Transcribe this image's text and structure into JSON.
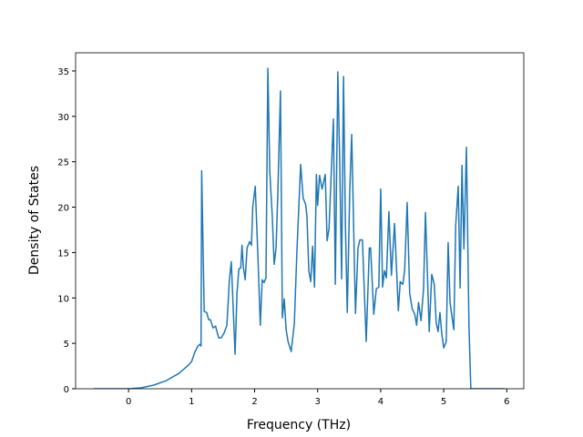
{
  "chart_data": {
    "type": "line",
    "xlabel": "Frequency (THz)",
    "ylabel": "Density of States",
    "xlim": [
      -0.84,
      6.27
    ],
    "ylim": [
      0,
      37
    ],
    "xticks": [
      0,
      1,
      2,
      3,
      4,
      5,
      6
    ],
    "yticks": [
      0,
      5,
      10,
      15,
      20,
      25,
      30,
      35
    ],
    "grid": false,
    "series": [
      {
        "color": "#1f77b4",
        "x": [
          -0.55,
          0,
          0.2,
          0.4,
          0.6,
          0.8,
          0.95,
          1.0,
          1.05,
          1.1,
          1.13,
          1.15,
          1.16,
          1.2,
          1.24,
          1.27,
          1.3,
          1.34,
          1.38,
          1.43,
          1.47,
          1.52,
          1.56,
          1.6,
          1.63,
          1.69,
          1.72,
          1.75,
          1.78,
          1.8,
          1.82,
          1.85,
          1.88,
          1.92,
          1.95,
          1.97,
          2.01,
          2.05,
          2.09,
          2.12,
          2.15,
          2.18,
          2.21,
          2.24,
          2.28,
          2.31,
          2.34,
          2.37,
          2.41,
          2.44,
          2.47,
          2.5,
          2.53,
          2.58,
          2.63,
          2.67,
          2.73,
          2.77,
          2.81,
          2.83,
          2.86,
          2.89,
          2.92,
          2.95,
          2.98,
          3.0,
          3.03,
          3.07,
          3.12,
          3.15,
          3.18,
          3.25,
          3.28,
          3.32,
          3.35,
          3.38,
          3.41,
          3.44,
          3.47,
          3.51,
          3.54,
          3.6,
          3.64,
          3.67,
          3.71,
          3.77,
          3.82,
          3.84,
          3.89,
          3.93,
          3.97,
          4.0,
          4.03,
          4.06,
          4.09,
          4.13,
          4.17,
          4.22,
          4.28,
          4.31,
          4.35,
          4.38,
          4.42,
          4.46,
          4.5,
          4.54,
          4.57,
          4.6,
          4.64,
          4.68,
          4.71,
          4.77,
          4.81,
          4.85,
          4.88,
          4.91,
          4.94,
          4.97,
          5.0,
          5.04,
          5.07,
          5.1,
          5.16,
          5.19,
          5.23,
          5.26,
          5.29,
          5.32,
          5.36,
          5.4,
          5.43,
          5.97
        ],
        "values": [
          0,
          0,
          0.1,
          0.4,
          0.9,
          1.7,
          2.6,
          3.0,
          4.0,
          4.7,
          4.9,
          4.7,
          24,
          8.5,
          8.4,
          7.6,
          7.6,
          6.7,
          6.9,
          5.6,
          5.6,
          6.2,
          7.0,
          12,
          14,
          3.8,
          10.5,
          13.2,
          13.3,
          15.8,
          13.5,
          12,
          15.5,
          16.2,
          15.8,
          20,
          22.3,
          15,
          7.0,
          12,
          11.7,
          12.2,
          35.3,
          24,
          19,
          13.7,
          15.5,
          22,
          32.8,
          7.8,
          9.9,
          6.5,
          5.2,
          4.1,
          7.2,
          15,
          24.7,
          21,
          20.3,
          19,
          13,
          11.8,
          15.7,
          11.2,
          23.6,
          20.2,
          23.5,
          22,
          23.6,
          16.3,
          17.6,
          29.7,
          11.5,
          34.9,
          25,
          12.1,
          34.4,
          18,
          8.4,
          22,
          28,
          8.3,
          15.5,
          16.4,
          16.4,
          5.2,
          15.5,
          15.5,
          8.2,
          11,
          11.2,
          22,
          11.2,
          13,
          12.2,
          19.5,
          12.5,
          18.2,
          8.6,
          11.8,
          11.5,
          13,
          20.5,
          10.5,
          8.8,
          8.2,
          7.0,
          9.5,
          7.5,
          11,
          19.4,
          6.3,
          12.6,
          11.5,
          7.3,
          6.3,
          8.4,
          6.0,
          4.5,
          5.2,
          16.1,
          9.5,
          6.5,
          18,
          22.3,
          11.1,
          24.6,
          15.4,
          26.6,
          7.0,
          0,
          0
        ]
      }
    ]
  }
}
